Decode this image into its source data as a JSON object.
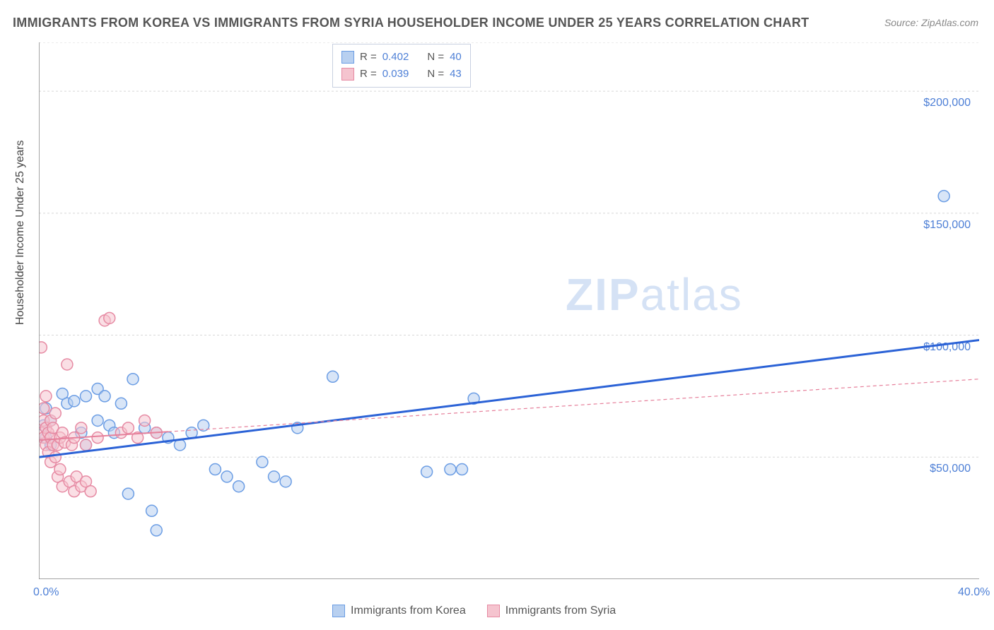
{
  "title": "IMMIGRANTS FROM KOREA VS IMMIGRANTS FROM SYRIA HOUSEHOLDER INCOME UNDER 25 YEARS CORRELATION CHART",
  "source_label": "Source:",
  "source_value": "ZipAtlas.com",
  "ylabel": "Householder Income Under 25 years",
  "watermark_zip": "ZIP",
  "watermark_atlas": "atlas",
  "chart": {
    "type": "scatter",
    "xlim": [
      0,
      40
    ],
    "ylim": [
      0,
      220000
    ],
    "x_ticks_major": [
      0,
      40
    ],
    "x_tick_labels": [
      "0.0%",
      "40.0%"
    ],
    "x_ticks_minor": [
      3.5,
      7,
      10.5,
      14,
      17.5,
      21
    ],
    "y_ticks": [
      50000,
      100000,
      150000,
      200000
    ],
    "y_tick_labels": [
      "$50,000",
      "$100,000",
      "$150,000",
      "$200,000"
    ],
    "grid_color": "#d8d8d8",
    "axis_color": "#888888",
    "background_color": "#ffffff",
    "series": [
      {
        "name": "Immigrants from Korea",
        "color_fill": "#b8d0f0",
        "color_stroke": "#6b9de4",
        "marker_radius": 8,
        "fill_opacity": 0.55,
        "R": "0.402",
        "N": "40",
        "trend": {
          "x1": 0,
          "y1": 50000,
          "x2": 40,
          "y2": 98000,
          "color": "#2b62d6",
          "width": 3,
          "solid_until_x": 40
        },
        "points": [
          [
            0.2,
            63000
          ],
          [
            0.3,
            58000
          ],
          [
            0.3,
            70000
          ],
          [
            0.5,
            65000
          ],
          [
            0.5,
            55000
          ],
          [
            1.0,
            76000
          ],
          [
            1.2,
            72000
          ],
          [
            1.5,
            73000
          ],
          [
            1.8,
            60000
          ],
          [
            2.0,
            55000
          ],
          [
            2.0,
            75000
          ],
          [
            2.5,
            78000
          ],
          [
            2.5,
            65000
          ],
          [
            2.8,
            75000
          ],
          [
            3.0,
            63000
          ],
          [
            3.2,
            60000
          ],
          [
            3.5,
            72000
          ],
          [
            3.8,
            35000
          ],
          [
            4.0,
            82000
          ],
          [
            4.5,
            62000
          ],
          [
            4.8,
            28000
          ],
          [
            5.0,
            60000
          ],
          [
            5.0,
            20000
          ],
          [
            5.5,
            58000
          ],
          [
            6.0,
            55000
          ],
          [
            6.5,
            60000
          ],
          [
            7.0,
            63000
          ],
          [
            7.5,
            45000
          ],
          [
            8.0,
            42000
          ],
          [
            8.5,
            38000
          ],
          [
            9.5,
            48000
          ],
          [
            10.0,
            42000
          ],
          [
            10.5,
            40000
          ],
          [
            11.0,
            62000
          ],
          [
            12.5,
            83000
          ],
          [
            16.5,
            44000
          ],
          [
            17.5,
            45000
          ],
          [
            18.0,
            45000
          ],
          [
            18.5,
            74000
          ],
          [
            38.5,
            157000
          ]
        ]
      },
      {
        "name": "Immigrants from Syria",
        "color_fill": "#f5c4cf",
        "color_stroke": "#e68aa3",
        "marker_radius": 8,
        "fill_opacity": 0.55,
        "R": "0.039",
        "N": "43",
        "trend": {
          "x1": 0,
          "y1": 57000,
          "x2": 40,
          "y2": 82000,
          "color": "#e6809b",
          "width": 2,
          "solid_until_x": 5.5
        },
        "points": [
          [
            0.1,
            60000
          ],
          [
            0.1,
            95000
          ],
          [
            0.2,
            58000
          ],
          [
            0.2,
            65000
          ],
          [
            0.2,
            70000
          ],
          [
            0.3,
            55000
          ],
          [
            0.3,
            62000
          ],
          [
            0.3,
            75000
          ],
          [
            0.4,
            52000
          ],
          [
            0.4,
            60000
          ],
          [
            0.5,
            58000
          ],
          [
            0.5,
            65000
          ],
          [
            0.5,
            48000
          ],
          [
            0.6,
            55000
          ],
          [
            0.6,
            62000
          ],
          [
            0.7,
            50000
          ],
          [
            0.7,
            68000
          ],
          [
            0.8,
            55000
          ],
          [
            0.8,
            42000
          ],
          [
            0.9,
            58000
          ],
          [
            0.9,
            45000
          ],
          [
            1.0,
            60000
          ],
          [
            1.0,
            38000
          ],
          [
            1.1,
            56000
          ],
          [
            1.2,
            88000
          ],
          [
            1.3,
            40000
          ],
          [
            1.4,
            55000
          ],
          [
            1.5,
            36000
          ],
          [
            1.5,
            58000
          ],
          [
            1.6,
            42000
          ],
          [
            1.8,
            38000
          ],
          [
            1.8,
            62000
          ],
          [
            2.0,
            40000
          ],
          [
            2.0,
            55000
          ],
          [
            2.2,
            36000
          ],
          [
            2.5,
            58000
          ],
          [
            2.8,
            106000
          ],
          [
            3.0,
            107000
          ],
          [
            3.5,
            60000
          ],
          [
            3.8,
            62000
          ],
          [
            4.2,
            58000
          ],
          [
            4.5,
            65000
          ],
          [
            5.0,
            60000
          ]
        ]
      }
    ]
  },
  "legend_top": {
    "r_label": "R =",
    "n_label": "N ="
  },
  "legend_bottom_labels": [
    "Immigrants from Korea",
    "Immigrants from Syria"
  ]
}
